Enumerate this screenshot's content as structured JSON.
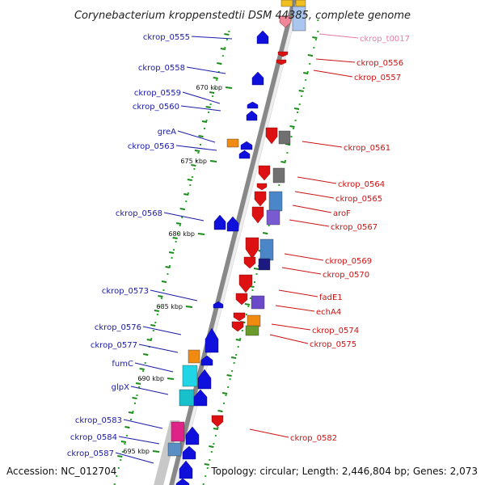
{
  "title": "Corynebacterium kroppenstedtii DSM 44385, complete genome",
  "footer": {
    "accession": "Accession: NC_012704",
    "topology": "Topology: circular; Length: 2,446,804 bp; Genes: 2,073"
  },
  "colors": {
    "left_label": "#1a1aa6",
    "right_label": "#cc1111",
    "trna_label": "#e87aa8",
    "minus_strand": "#1010dd",
    "plus_strand": "#dd1111",
    "tick": "#1b8a1b",
    "dot": "#22aa22",
    "backbone": "#888888"
  },
  "scale_ticks": [
    "670 kbp",
    "675 kbp",
    "680 kbp",
    "685 kbp",
    "690 kbp",
    "695 kbp"
  ],
  "left_genes": [
    "ckrop_0555",
    "ckrop_0558",
    "ckrop_0559",
    "ckrop_0560",
    "greA",
    "ckrop_0563",
    "ckrop_0568",
    "ckrop_0573",
    "ckrop_0576",
    "ckrop_0577",
    "fumC",
    "glpX",
    "ckrop_0583",
    "ckrop_0584",
    "ckrop_0587"
  ],
  "right_genes": [
    "ckrop_t0017",
    "ckrop_0556",
    "ckrop_0557",
    "ckrop_0561",
    "ckrop_0564",
    "ckrop_0565",
    "aroF",
    "ckrop_0567",
    "ckrop_0569",
    "ckrop_0570",
    "fadE1",
    "echA4",
    "ckrop_0574",
    "ckrop_0575",
    "ckrop_0582"
  ]
}
